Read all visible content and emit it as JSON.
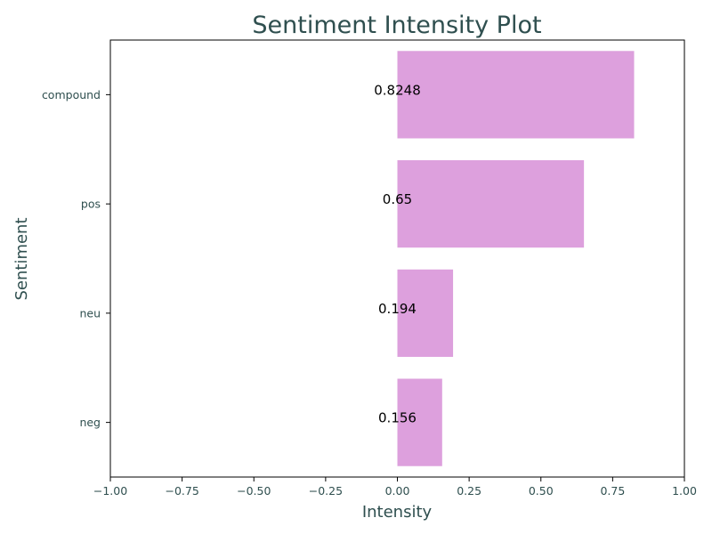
{
  "chart_data": {
    "type": "bar",
    "orientation": "horizontal",
    "title": "Sentiment Intensity Plot",
    "xlabel": "Intensity",
    "ylabel": "Sentiment",
    "categories": [
      "compound",
      "pos",
      "neu",
      "neg"
    ],
    "values": [
      0.8248,
      0.65,
      0.194,
      0.156
    ],
    "value_labels": [
      "0.8248",
      "0.65",
      "0.194",
      "0.156"
    ],
    "xlim": [
      -1.0,
      1.0
    ],
    "xticks": [
      -1.0,
      -0.75,
      -0.5,
      -0.25,
      0.0,
      0.25,
      0.5,
      0.75,
      1.0
    ],
    "xtick_labels": [
      "−1.00",
      "−0.75",
      "−0.50",
      "−0.25",
      "0.00",
      "0.25",
      "0.50",
      "0.75",
      "1.00"
    ],
    "grid": false,
    "colors": {
      "bar": "#dda0dd",
      "text": "#2f4f4f",
      "data_label": "#000000",
      "axes": "#000000"
    }
  }
}
